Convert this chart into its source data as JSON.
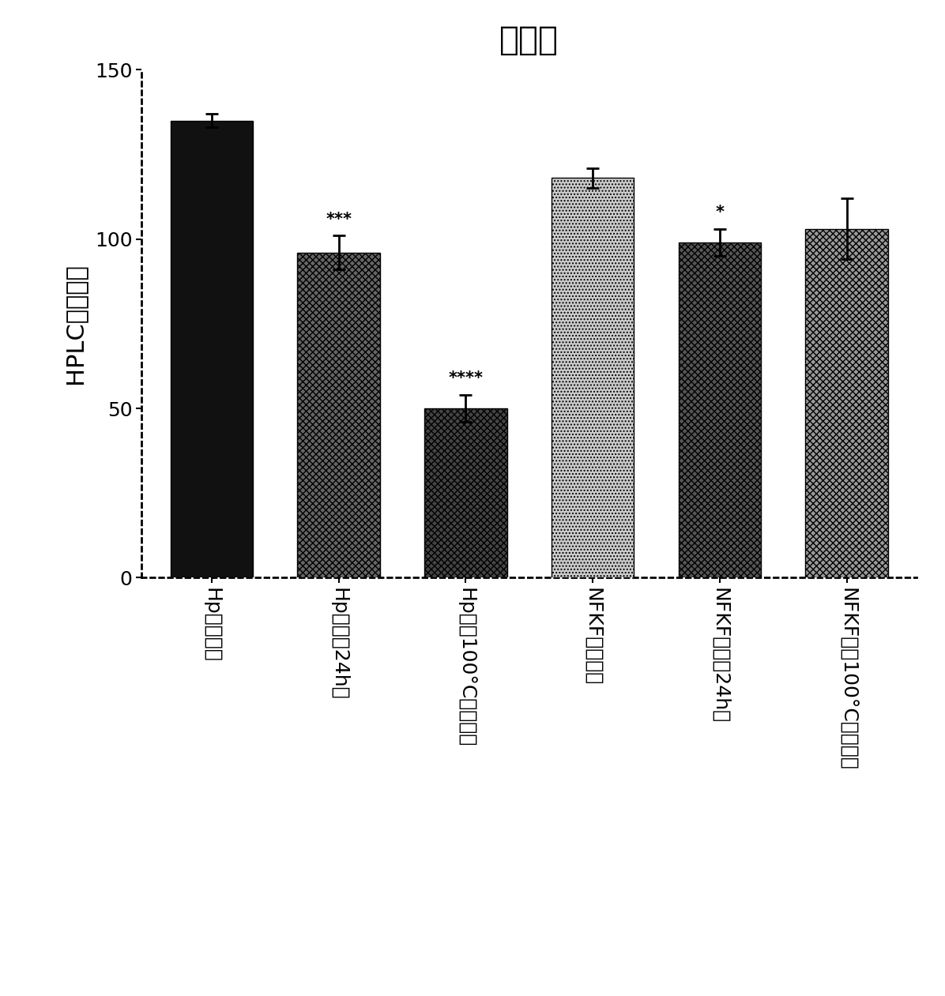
{
  "title": "稳定性",
  "ylabel": "HPLC峰的面积",
  "categories": [
    "Hp（对照）",
    "Hp（冷冻24h）",
    "Hp（在100°C下加热）",
    "NFKF（对照）",
    "NFKF（冷冻24h）",
    "NFKF（在100°C下加热）"
  ],
  "values": [
    135,
    96,
    50,
    118,
    99,
    103
  ],
  "errors": [
    2,
    5,
    4,
    3,
    4,
    9
  ],
  "ylim": [
    0,
    150
  ],
  "yticks": [
    0,
    50,
    100,
    150
  ],
  "annotations": [
    "",
    "***",
    "****",
    "",
    "*",
    ""
  ],
  "hatch_patterns": [
    "",
    "xxxx",
    "xxxx",
    "....",
    "xxxx",
    "xxxx"
  ],
  "bar_colors": [
    "#111111",
    "#666666",
    "#444444",
    "#cccccc",
    "#555555",
    "#999999"
  ],
  "bar_edge_colors": [
    "#000000",
    "#000000",
    "#000000",
    "#000000",
    "#000000",
    "#000000"
  ],
  "title_fontsize": 30,
  "ylabel_fontsize": 22,
  "tick_fontsize": 18,
  "xtick_fontsize": 18,
  "annot_fontsize": 15,
  "bar_width": 0.65
}
